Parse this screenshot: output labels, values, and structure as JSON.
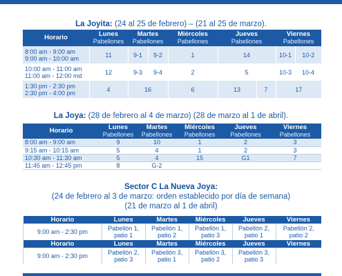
{
  "section1": {
    "title_bold": "La Joyita:",
    "title_rest": " (24 al 25 de febrero) – (21 al 25 de marzo).",
    "headers": {
      "horario": "Horario",
      "lunes": "Lunes",
      "martes": "Martes",
      "miercoles": "Miércoles",
      "jueves": "Jueves",
      "viernes": "Viernes",
      "pab": "Pabellones"
    },
    "rows": [
      {
        "h1": "8:00 am -   9:00 am",
        "h2": "9:00 am - 10:00 am",
        "lunes": "11",
        "martes_a": "9-1",
        "martes_b": "9-2",
        "miercoles": "1",
        "jueves": "14",
        "viernes_a": "10-1",
        "viernes_b": "10-2"
      },
      {
        "h1": "10:00 am - 11:00 am",
        "h2": "11:00 am - 12:00 md",
        "lunes": "12",
        "martes_a": "9-3",
        "martes_b": "9-4",
        "miercoles": "2",
        "jueves": "5",
        "viernes_a": "10-3",
        "viernes_b": "10-4"
      },
      {
        "h1": "1:30 pm -   2:30 pm",
        "h2": "2:30 pm -   4:00 pm",
        "lunes": "4",
        "martes": "16",
        "miercoles": "6",
        "jueves_a": "13",
        "jueves_b": "7",
        "viernes": "17"
      }
    ]
  },
  "section2": {
    "title_bold": "La Joya:",
    "title_rest": " (28 de febrero al 4 de marzo) (28 de marzo al 1 de abril).",
    "headers": {
      "horario": "Horario",
      "lunes": "Lunes",
      "martes": "Martes",
      "miercoles": "Miércoles",
      "jueves": "Jueves",
      "viernes": "Viernes",
      "pab": "Pabellones"
    },
    "rows": [
      {
        "h": "8:00 am -   9:00 am",
        "lunes": "9",
        "martes": "10",
        "miercoles": "1",
        "jueves": "2",
        "viernes": "3"
      },
      {
        "h": "9:15 am - 10:15 am",
        "lunes": "5",
        "martes": "4",
        "miercoles": "1",
        "jueves": "2",
        "viernes": "3"
      },
      {
        "h": "10:30 am - 11:30 am",
        "lunes": "5",
        "martes": "4",
        "miercoles": "15",
        "jueves": "G1",
        "viernes": "7"
      },
      {
        "h": "11:45 am - 12:45 pm",
        "lunes": "8",
        "martes": "G-2",
        "miercoles": "",
        "jueves": "",
        "viernes": ""
      }
    ]
  },
  "section3": {
    "title_line1": "Sector C La Nueva Joya:",
    "title_line2": "(24 de febrero al 3 de marzo: orden establecido por día de semana)",
    "title_line3": "(21 de marzo al 1 de abril)",
    "headers": {
      "horario": "Horario",
      "lunes": "Lunes",
      "martes": "Martes",
      "miercoles": "Miércoles",
      "jueves": "Jueves",
      "viernes": "Viernes"
    },
    "block1": {
      "h": "9:00 am -   2:30 pm",
      "lunes": [
        "Pabellón 1,",
        "patio 1"
      ],
      "martes": [
        "Pabellón 1,",
        "patio 2"
      ],
      "miercoles": [
        "Pabellón 1,",
        "patio 3"
      ],
      "jueves": [
        "Pabellón 2,",
        "patio 1"
      ],
      "viernes": [
        "Pabellón 2,",
        "patio 2"
      ]
    },
    "block2": {
      "h": "9:00 am -   2:30 pm",
      "lunes": [
        "Pabellón 2,",
        "patio 3"
      ],
      "martes": [
        "Pabellón 3,",
        "patio 1"
      ],
      "miercoles": [
        "Pabellón 3,",
        "patio 2"
      ],
      "jueves": [
        "Pabellón 3,",
        "patio 3"
      ],
      "viernes": [
        "",
        ""
      ]
    }
  }
}
